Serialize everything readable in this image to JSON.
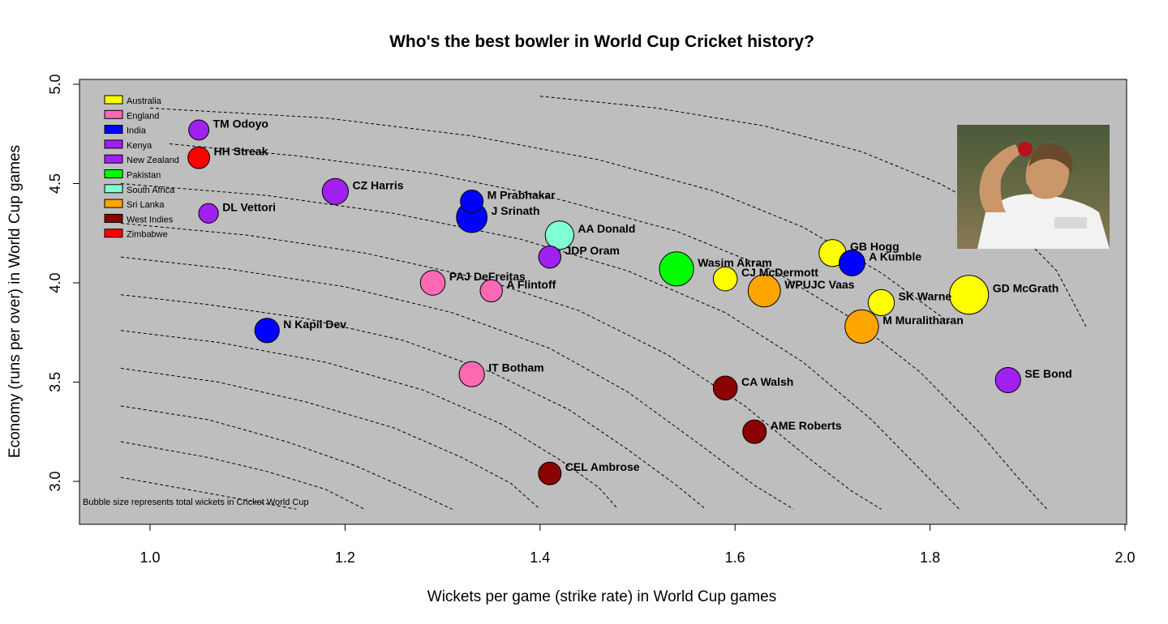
{
  "chart_data": {
    "type": "scatter",
    "title": "Who's the best bowler in World Cup Cricket history?",
    "xlabel": "Wickets per game (strike rate) in World Cup games",
    "ylabel": "Economy (runs per over) in World Cup games",
    "xlim": [
      0.92,
      2.0
    ],
    "ylim": [
      2.8,
      5.02
    ],
    "xticks": [
      "1.0",
      "1.2",
      "1.4",
      "1.6",
      "1.8",
      "2.0"
    ],
    "yticks": [
      "3.0",
      "3.5",
      "4.0",
      "4.5",
      "5.0"
    ],
    "xtick_values": [
      1.0,
      1.2,
      1.4,
      1.6,
      1.8,
      2.0
    ],
    "ytick_values": [
      3.0,
      3.5,
      4.0,
      4.5,
      5.0
    ],
    "background": "#bebebe",
    "note": "Bubble size represents total wickets in Cricket World Cup",
    "legend": [
      {
        "label": "Australia",
        "color": "#ffff00"
      },
      {
        "label": "England",
        "color": "#ff69b4"
      },
      {
        "label": "India",
        "color": "#0000ff"
      },
      {
        "label": "Kenya",
        "color": "#a020f0"
      },
      {
        "label": "New Zealand",
        "color": "#a020f0"
      },
      {
        "label": "Pakistan",
        "color": "#00ff00"
      },
      {
        "label": "South Africa",
        "color": "#7fffd4"
      },
      {
        "label": "Sri Lanka",
        "color": "#ffa500"
      },
      {
        "label": "West Indies",
        "color": "#8b0000"
      },
      {
        "label": "Zimbabwe",
        "color": "#ff0000"
      }
    ],
    "points": [
      {
        "name": "TM Odoyo",
        "x": 1.05,
        "y": 4.77,
        "wickets": 19,
        "country": "Kenya",
        "color": "#a020f0"
      },
      {
        "name": "HH Streak",
        "x": 1.05,
        "y": 4.63,
        "wickets": 22,
        "country": "Zimbabwe",
        "color": "#ff0000"
      },
      {
        "name": "DL Vettori",
        "x": 1.06,
        "y": 4.35,
        "wickets": 18,
        "country": "New Zealand",
        "color": "#a020f0"
      },
      {
        "name": "CZ Harris",
        "x": 1.19,
        "y": 4.46,
        "wickets": 32,
        "country": "New Zealand",
        "color": "#a020f0"
      },
      {
        "name": "M Prabhakar",
        "x": 1.33,
        "y": 4.41,
        "wickets": 24,
        "country": "India",
        "color": "#0000ff"
      },
      {
        "name": "J Srinath",
        "x": 1.33,
        "y": 4.33,
        "wickets": 44,
        "country": "India",
        "color": "#0000ff"
      },
      {
        "name": "AA Donald",
        "x": 1.42,
        "y": 4.24,
        "wickets": 38,
        "country": "South Africa",
        "color": "#7fffd4"
      },
      {
        "name": "JDP Oram",
        "x": 1.41,
        "y": 4.13,
        "wickets": 23,
        "country": "New Zealand",
        "color": "#a020f0"
      },
      {
        "name": "PAJ DeFreitas",
        "x": 1.29,
        "y": 4.0,
        "wickets": 29,
        "country": "England",
        "color": "#ff69b4"
      },
      {
        "name": "A Flintoff",
        "x": 1.35,
        "y": 3.96,
        "wickets": 23,
        "country": "England",
        "color": "#ff69b4"
      },
      {
        "name": "Wasim Akram",
        "x": 1.54,
        "y": 4.07,
        "wickets": 55,
        "country": "Pakistan",
        "color": "#00ff00"
      },
      {
        "name": "CJ McDermott",
        "x": 1.59,
        "y": 4.02,
        "wickets": 27,
        "country": "Australia",
        "color": "#ffff00"
      },
      {
        "name": "WPUJC Vaas",
        "x": 1.63,
        "y": 3.96,
        "wickets": 49,
        "country": "Sri Lanka",
        "color": "#ffa500"
      },
      {
        "name": "GB Hogg",
        "x": 1.7,
        "y": 4.15,
        "wickets": 34,
        "country": "Australia",
        "color": "#ffff00"
      },
      {
        "name": "A Kumble",
        "x": 1.72,
        "y": 4.1,
        "wickets": 31,
        "country": "India",
        "color": "#0000ff"
      },
      {
        "name": "SK Warne",
        "x": 1.75,
        "y": 3.9,
        "wickets": 32,
        "country": "Australia",
        "color": "#ffff00"
      },
      {
        "name": "GD McGrath",
        "x": 1.84,
        "y": 3.94,
        "wickets": 71,
        "country": "Australia",
        "color": "#ffff00"
      },
      {
        "name": "M Muralitharan",
        "x": 1.73,
        "y": 3.78,
        "wickets": 53,
        "country": "Sri Lanka",
        "color": "#ffa500"
      },
      {
        "name": "N Kapil Dev",
        "x": 1.12,
        "y": 3.76,
        "wickets": 28,
        "country": "India",
        "color": "#0000ff"
      },
      {
        "name": "IT Botham",
        "x": 1.33,
        "y": 3.54,
        "wickets": 30,
        "country": "England",
        "color": "#ff69b4"
      },
      {
        "name": "CA Walsh",
        "x": 1.59,
        "y": 3.47,
        "wickets": 27,
        "country": "West Indies",
        "color": "#8b0000"
      },
      {
        "name": "SE Bond",
        "x": 1.88,
        "y": 3.51,
        "wickets": 30,
        "country": "New Zealand",
        "color": "#a020f0"
      },
      {
        "name": "AME Roberts",
        "x": 1.62,
        "y": 3.25,
        "wickets": 26,
        "country": "West Indies",
        "color": "#8b0000"
      },
      {
        "name": "CEL Ambrose",
        "x": 1.41,
        "y": 3.04,
        "wickets": 24,
        "country": "West Indies",
        "color": "#8b0000"
      }
    ],
    "contours": [
      [
        [
          0.97,
          3.02
        ],
        [
          1.06,
          2.94
        ],
        [
          1.15,
          2.86
        ]
      ],
      [
        [
          0.97,
          3.2
        ],
        [
          1.06,
          3.12
        ],
        [
          1.12,
          3.05
        ],
        [
          1.18,
          2.96
        ],
        [
          1.22,
          2.86
        ]
      ],
      [
        [
          0.97,
          3.38
        ],
        [
          1.06,
          3.31
        ],
        [
          1.14,
          3.2
        ],
        [
          1.21,
          3.08
        ],
        [
          1.27,
          2.95
        ],
        [
          1.31,
          2.86
        ]
      ],
      [
        [
          0.97,
          3.57
        ],
        [
          1.07,
          3.5
        ],
        [
          1.16,
          3.4
        ],
        [
          1.25,
          3.27
        ],
        [
          1.32,
          3.12
        ],
        [
          1.37,
          2.99
        ],
        [
          1.4,
          2.86
        ]
      ],
      [
        [
          0.97,
          3.76
        ],
        [
          1.07,
          3.7
        ],
        [
          1.18,
          3.6
        ],
        [
          1.28,
          3.46
        ],
        [
          1.36,
          3.29
        ],
        [
          1.42,
          3.11
        ],
        [
          1.46,
          2.97
        ],
        [
          1.48,
          2.86
        ]
      ],
      [
        [
          0.97,
          3.94
        ],
        [
          1.06,
          3.89
        ],
        [
          1.16,
          3.82
        ],
        [
          1.26,
          3.71
        ],
        [
          1.35,
          3.55
        ],
        [
          1.43,
          3.36
        ],
        [
          1.49,
          3.16
        ],
        [
          1.54,
          2.98
        ],
        [
          1.57,
          2.86
        ]
      ],
      [
        [
          0.97,
          4.13
        ],
        [
          1.08,
          4.07
        ],
        [
          1.2,
          3.98
        ],
        [
          1.31,
          3.85
        ],
        [
          1.41,
          3.67
        ],
        [
          1.49,
          3.45
        ],
        [
          1.56,
          3.2
        ],
        [
          1.62,
          2.98
        ],
        [
          1.66,
          2.86
        ]
      ],
      [
        [
          0.97,
          4.3
        ],
        [
          1.1,
          4.24
        ],
        [
          1.22,
          4.15
        ],
        [
          1.34,
          4.02
        ],
        [
          1.44,
          3.86
        ],
        [
          1.53,
          3.64
        ],
        [
          1.61,
          3.38
        ],
        [
          1.68,
          3.1
        ],
        [
          1.72,
          2.95
        ],
        [
          1.75,
          2.86
        ]
      ],
      [
        [
          0.97,
          4.5
        ],
        [
          1.12,
          4.44
        ],
        [
          1.25,
          4.35
        ],
        [
          1.38,
          4.22
        ],
        [
          1.49,
          4.06
        ],
        [
          1.59,
          3.85
        ],
        [
          1.67,
          3.6
        ],
        [
          1.74,
          3.31
        ],
        [
          1.79,
          3.06
        ],
        [
          1.83,
          2.86
        ]
      ],
      [
        [
          1.02,
          4.7
        ],
        [
          1.15,
          4.64
        ],
        [
          1.29,
          4.55
        ],
        [
          1.42,
          4.42
        ],
        [
          1.54,
          4.26
        ],
        [
          1.64,
          4.06
        ],
        [
          1.72,
          3.82
        ],
        [
          1.79,
          3.55
        ],
        [
          1.85,
          3.25
        ],
        [
          1.89,
          3.02
        ],
        [
          1.92,
          2.86
        ]
      ],
      [
        [
          1.0,
          4.88
        ],
        [
          1.18,
          4.83
        ],
        [
          1.33,
          4.74
        ],
        [
          1.46,
          4.62
        ],
        [
          1.58,
          4.46
        ],
        [
          1.67,
          4.28
        ],
        [
          1.75,
          4.05
        ],
        [
          1.82,
          3.8
        ]
      ],
      [
        [
          1.4,
          4.94
        ],
        [
          1.52,
          4.88
        ],
        [
          1.63,
          4.79
        ],
        [
          1.73,
          4.66
        ],
        [
          1.81,
          4.5
        ],
        [
          1.88,
          4.31
        ],
        [
          1.93,
          4.06
        ],
        [
          1.96,
          3.78
        ]
      ]
    ]
  }
}
